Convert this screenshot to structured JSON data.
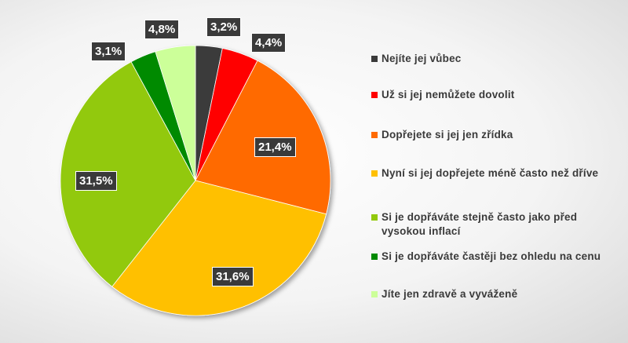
{
  "chart_data": {
    "type": "pie",
    "title": "",
    "legend_position": "right",
    "start_angle_deg": 0,
    "direction": "clockwise",
    "slices": [
      {
        "label": "Nejíte jej vůbec",
        "value": 3.2,
        "value_label": "3,2%",
        "color": "#3a3a3a"
      },
      {
        "label": "Už si jej nemůžete dovolit",
        "value": 4.4,
        "value_label": "4,4%",
        "color": "#ff0000"
      },
      {
        "label": "Dopřejete si jej jen zřídka",
        "value": 21.4,
        "value_label": "21,4%",
        "color": "#ff6a00"
      },
      {
        "label": "Nyní si jej dopřejete méně často než dříve",
        "value": 31.6,
        "value_label": "31,6%",
        "color": "#ffc000"
      },
      {
        "label": "Si je dopřáváte stejně často jako před vysokou inflací",
        "value": 31.5,
        "value_label": "31,5%",
        "color": "#92c90c"
      },
      {
        "label": "Si je dopřáváte častěji bez ohledu na cenu",
        "value": 3.1,
        "value_label": "3,1%",
        "color": "#008a00"
      },
      {
        "label": "Jíte jen zdravě a vyváženě",
        "value": 4.8,
        "value_label": "4,8%",
        "color": "#ccff99"
      }
    ]
  }
}
